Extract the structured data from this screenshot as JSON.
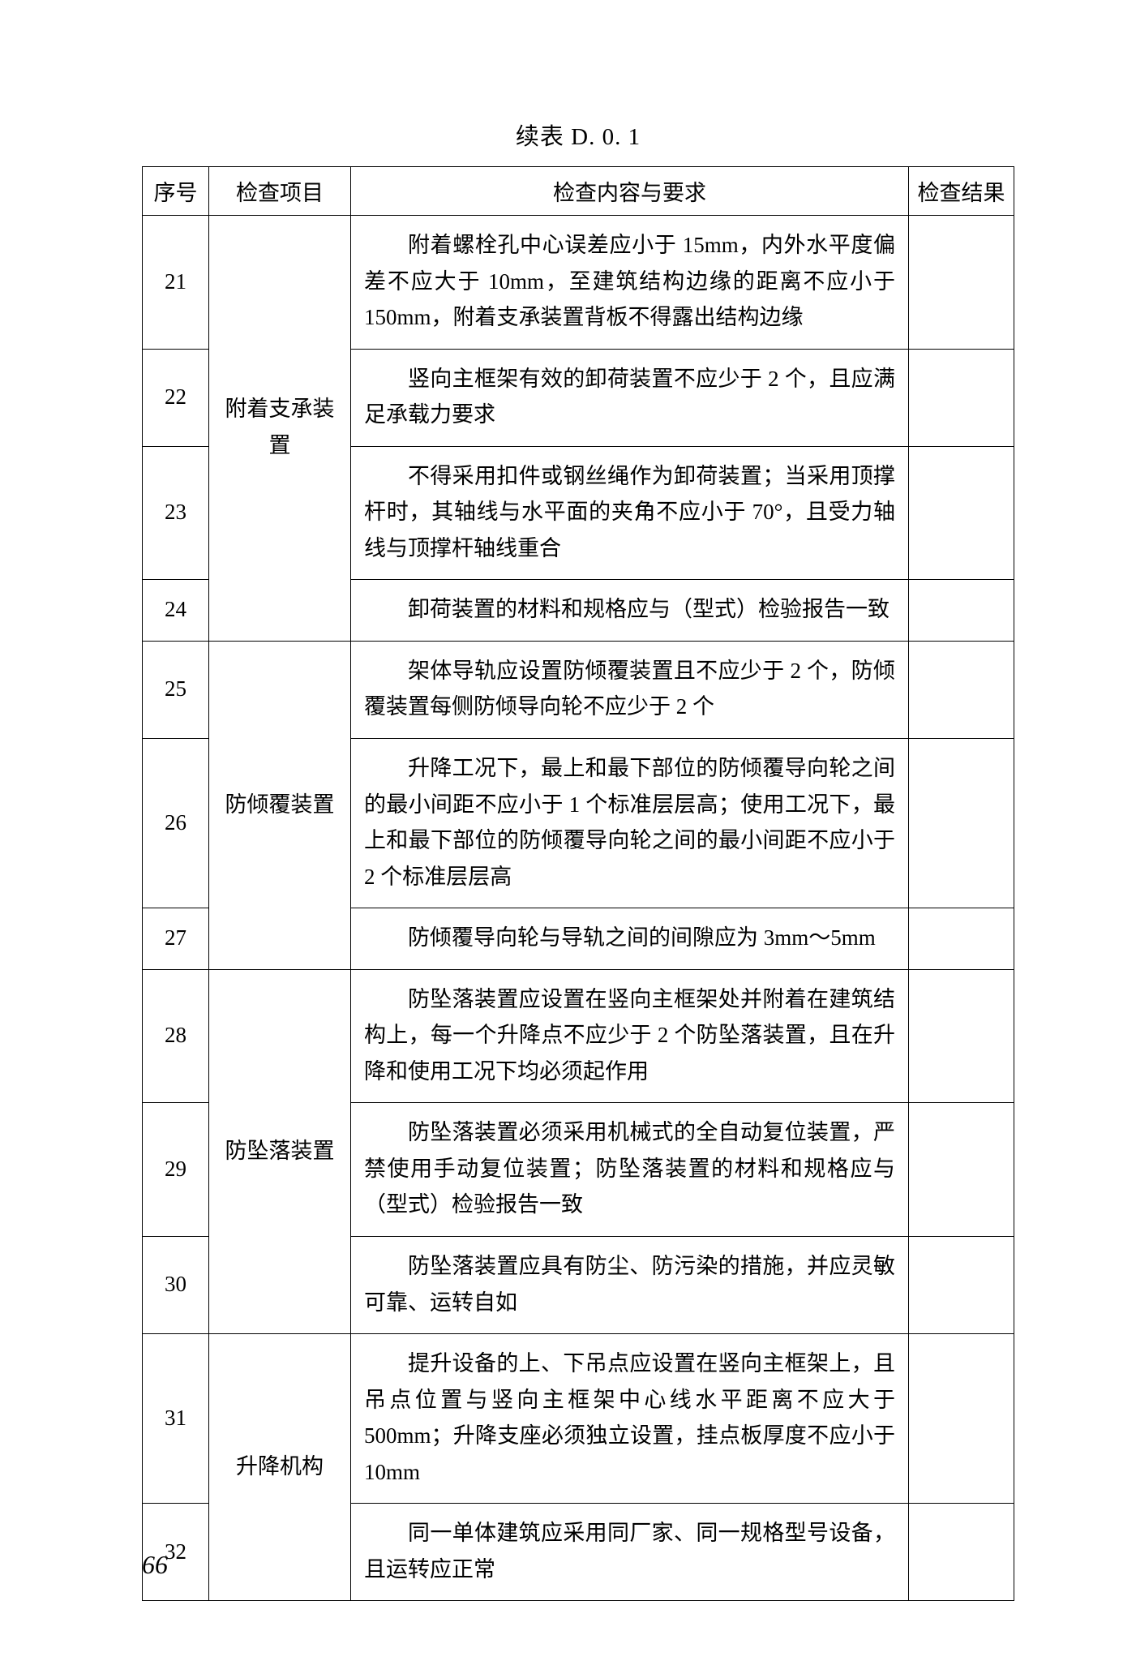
{
  "caption": "续表 D. 0. 1",
  "headers": {
    "num": "序号",
    "item": "检查项目",
    "content": "检查内容与要求",
    "result": "检查结果"
  },
  "groups": [
    {
      "item": "附着支承装置",
      "rows": [
        {
          "num": "21",
          "content": "附着螺栓孔中心误差应小于 15mm，内外水平度偏差不应大于 10mm，至建筑结构边缘的距离不应小于 150mm，附着支承装置背板不得露出结构边缘"
        },
        {
          "num": "22",
          "content": "竖向主框架有效的卸荷装置不应少于 2 个，且应满足承载力要求"
        },
        {
          "num": "23",
          "content": "不得采用扣件或钢丝绳作为卸荷装置；当采用顶撑杆时，其轴线与水平面的夹角不应小于 70°，且受力轴线与顶撑杆轴线重合"
        },
        {
          "num": "24",
          "content": "卸荷装置的材料和规格应与（型式）检验报告一致"
        }
      ]
    },
    {
      "item": "防倾覆装置",
      "rows": [
        {
          "num": "25",
          "content": "架体导轨应设置防倾覆装置且不应少于 2 个，防倾覆装置每侧防倾导向轮不应少于 2 个"
        },
        {
          "num": "26",
          "content": "升降工况下，最上和最下部位的防倾覆导向轮之间的最小间距不应小于 1 个标准层层高；使用工况下，最上和最下部位的防倾覆导向轮之间的最小间距不应小于 2 个标准层层高"
        },
        {
          "num": "27",
          "content": "防倾覆导向轮与导轨之间的间隙应为 3mm～5mm"
        }
      ]
    },
    {
      "item": "防坠落装置",
      "rows": [
        {
          "num": "28",
          "content": "防坠落装置应设置在竖向主框架处并附着在建筑结构上，每一个升降点不应少于 2 个防坠落装置，且在升降和使用工况下均必须起作用"
        },
        {
          "num": "29",
          "content": "防坠落装置必须采用机械式的全自动复位装置，严禁使用手动复位装置；防坠落装置的材料和规格应与（型式）检验报告一致"
        },
        {
          "num": "30",
          "content": "防坠落装置应具有防尘、防污染的措施，并应灵敏可靠、运转自如"
        }
      ]
    },
    {
      "item": "升降机构",
      "rows": [
        {
          "num": "31",
          "content": "提升设备的上、下吊点应设置在竖向主框架上，且吊点位置与竖向主框架中心线水平距离不应大于 500mm；升降支座必须独立设置，挂点板厚度不应小于 10mm"
        },
        {
          "num": "32",
          "content": "同一单体建筑应采用同厂家、同一规格型号设备，且运转应正常"
        }
      ]
    }
  ],
  "page_number": "66"
}
